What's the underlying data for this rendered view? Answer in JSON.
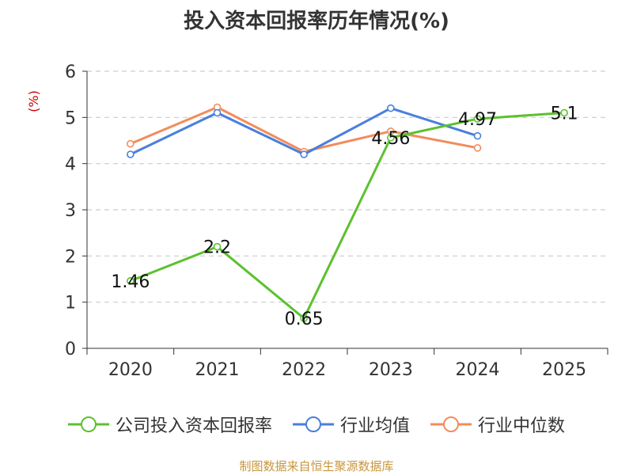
{
  "chart_data": {
    "type": "line",
    "title": "投入资本回报率历年情况(%)",
    "ylabel": "(%)",
    "xlabel": "",
    "ylim": [
      0,
      6
    ],
    "yticks": [
      0,
      1,
      2,
      3,
      4,
      5,
      6
    ],
    "grid": true,
    "legend_position": "bottom",
    "categories": [
      "2020",
      "2021",
      "2022",
      "2023",
      "2024",
      "2025"
    ],
    "series": [
      {
        "name": "公司投入资本回报率",
        "color": "#5cc12e",
        "values": [
          1.46,
          2.2,
          0.65,
          4.56,
          4.97,
          5.1
        ],
        "labels": [
          "1.46",
          "2.2",
          "0.65",
          "4.56",
          "4.97",
          "5.1"
        ]
      },
      {
        "name": "行业均值",
        "color": "#4a7fdc",
        "values": [
          4.2,
          5.1,
          4.2,
          5.2,
          4.6,
          null
        ]
      },
      {
        "name": "行业中位数",
        "color": "#f28c5c",
        "values": [
          4.43,
          5.22,
          4.26,
          4.7,
          4.34,
          null
        ]
      }
    ]
  },
  "footer": {
    "source": "制图数据来自恒生聚源数据库"
  }
}
